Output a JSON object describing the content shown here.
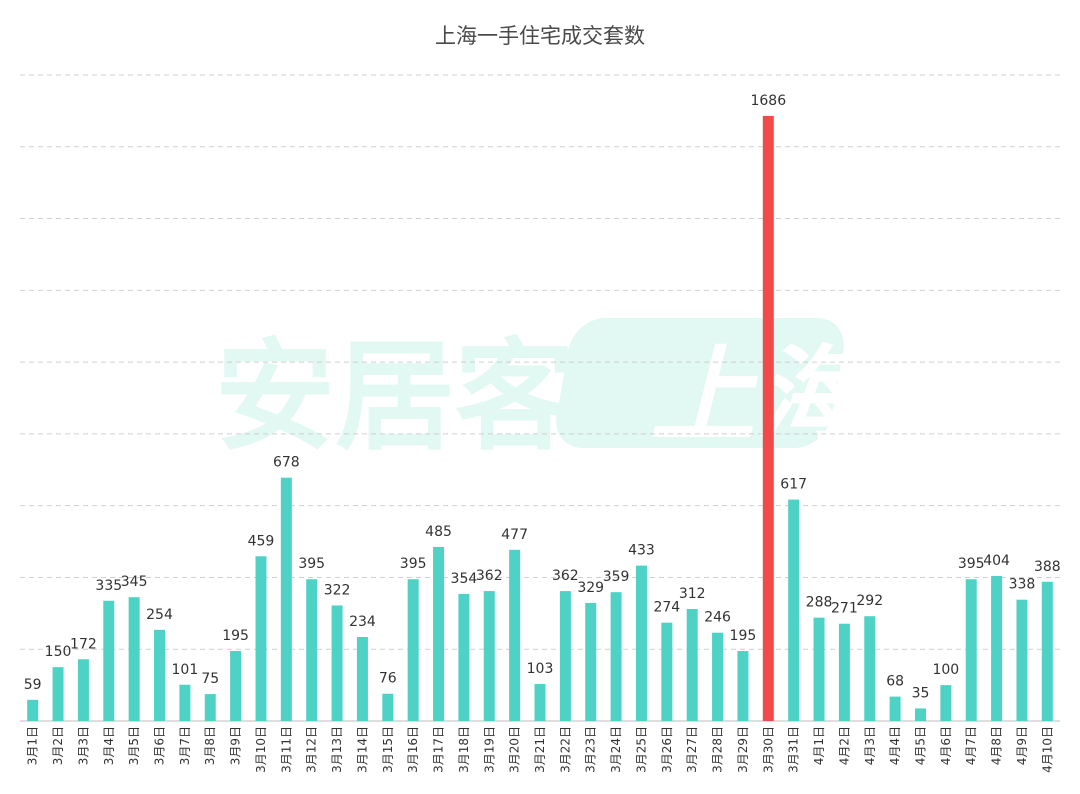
{
  "colors": {
    "bar": "#4fd2c6",
    "highlight": "#f24a4a",
    "grid": "#cfcfcf",
    "axis": "#bdbdbd",
    "label": "#333333",
    "watermark": "#e2f8f3"
  },
  "watermark": {
    "text_left": "安居客",
    "text_right": "上海"
  },
  "chart_data": {
    "type": "bar",
    "title": "上海一手住宅成交套数",
    "categories": [
      "3月1日",
      "3月2日",
      "3月3日",
      "3月4日",
      "3月5日",
      "3月6日",
      "3月7日",
      "3月8日",
      "3月9日",
      "3月10日",
      "3月11日",
      "3月12日",
      "3月13日",
      "3月14日",
      "3月15日",
      "3月16日",
      "3月17日",
      "3月18日",
      "3月19日",
      "3月20日",
      "3月21日",
      "3月22日",
      "3月23日",
      "3月24日",
      "3月25日",
      "3月26日",
      "3月27日",
      "3月28日",
      "3月29日",
      "3月30日",
      "3月31日",
      "4月1日",
      "4月2日",
      "4月3日",
      "4月4日",
      "4月5日",
      "4月6日",
      "4月7日",
      "4月8日",
      "4月9日",
      "4月10日"
    ],
    "values": [
      59,
      150,
      172,
      335,
      345,
      254,
      101,
      75,
      195,
      459,
      678,
      395,
      322,
      234,
      76,
      395,
      485,
      354,
      362,
      477,
      103,
      362,
      329,
      359,
      433,
      274,
      312,
      246,
      195,
      1686,
      617,
      288,
      271,
      292,
      68,
      35,
      100,
      395,
      404,
      338,
      388
    ],
    "highlight_category": "3月30日",
    "ylim": [
      0,
      1800
    ],
    "grid": true,
    "xlabel": "",
    "ylabel": ""
  }
}
